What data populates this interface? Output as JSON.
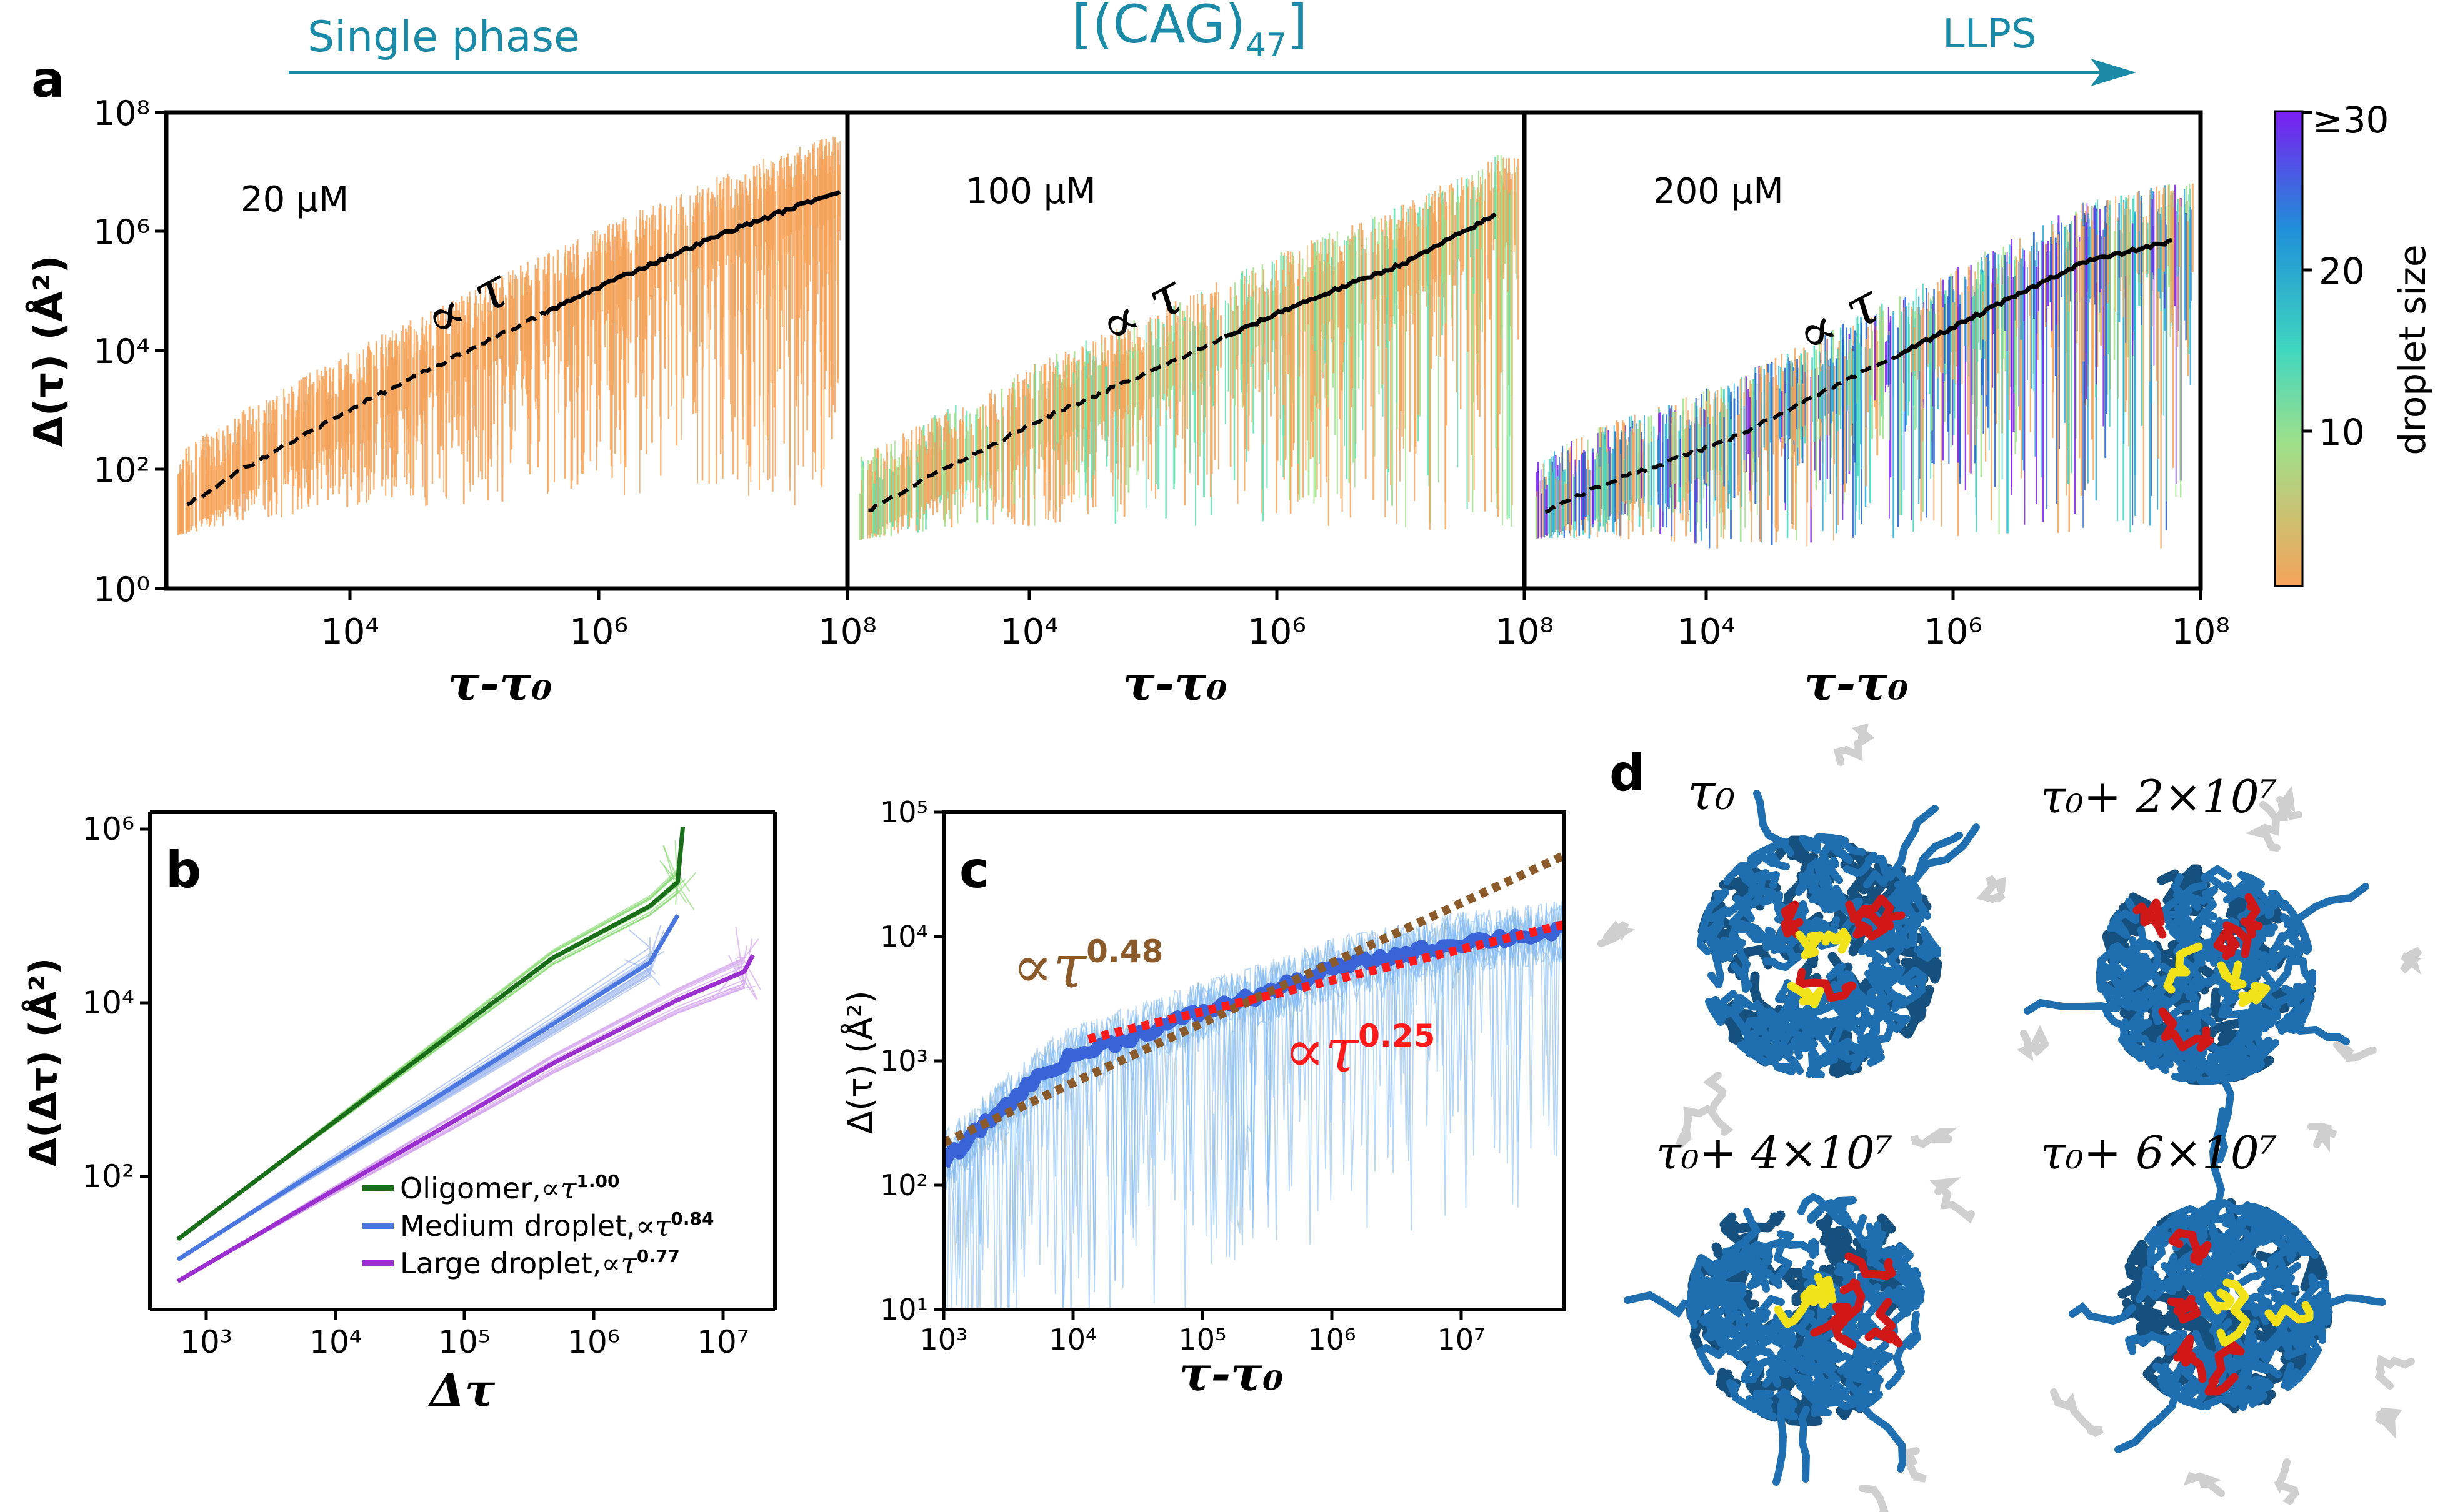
{
  "header": {
    "left": "Single phase",
    "center_main": "[(CAG)",
    "center_sub": "47",
    "center_close": "]",
    "right": "LLPS"
  },
  "panel_letters": {
    "a": "a",
    "b": "b",
    "c": "c",
    "d": "d"
  },
  "colors": {
    "header_teal": "#1a8aa6",
    "single_phase_orange": "#f5a35a",
    "oligomer": "#1a6e1a",
    "medium": "#4a78e0",
    "large": "#9b2fd0",
    "c_main": "#3a63d8",
    "c_fit1": "#8b5a2b",
    "c_fit2": "#ff1a1a",
    "droplet_blue": "#1f6fb0",
    "droplet_red": "#d01818",
    "droplet_yellow": "#f2e21a"
  },
  "panel_a": {
    "ylabel": "Δ(τ) (Å²)",
    "xlabel": "τ-τ₀",
    "colorbar": {
      "label": "droplet size",
      "ticks": [
        "10",
        "20",
        "≥30"
      ]
    },
    "y_ticks": [
      "10⁰",
      "10²",
      "10⁴",
      "10⁶",
      "10⁸"
    ],
    "x_ticks": [
      "10⁴",
      "10⁶",
      "10⁸"
    ]
  },
  "panel_d": {
    "labels": [
      "τ₀",
      "τ₀+ 2×10⁷",
      "τ₀+ 4×10⁷",
      "τ₀+ 6×10⁷"
    ]
  },
  "chart_data": [
    {
      "id": "a1",
      "type": "scatter",
      "annotation": "20 μM",
      "fit_label": "∝ τ",
      "xscale": "log",
      "yscale": "log",
      "xlim": [
        200,
        100000000
      ],
      "ylim": [
        1,
        100000000
      ],
      "mean_curve": {
        "x": [
          300,
          1000,
          10000,
          100000,
          1000000,
          10000000,
          90000000
        ],
        "y": [
          25,
          120,
          1500,
          15000,
          140000,
          1000000,
          5000000
        ]
      }
    },
    {
      "id": "a2",
      "type": "scatter",
      "annotation": "100 μM",
      "fit_label": "∝ τ",
      "xscale": "log",
      "yscale": "log",
      "xlim": [
        200,
        100000000
      ],
      "ylim": [
        1,
        100000000
      ],
      "mean_curve": {
        "x": [
          300,
          1000,
          10000,
          100000,
          1000000,
          10000000,
          60000000
        ],
        "y": [
          20,
          80,
          800,
          6000,
          50000,
          300000,
          2000000
        ]
      }
    },
    {
      "id": "a3",
      "type": "scatter",
      "annotation": "200 μM",
      "fit_label": "∝ τ",
      "xscale": "log",
      "yscale": "log",
      "xlim": [
        200,
        100000000
      ],
      "ylim": [
        1,
        100000000
      ],
      "mean_curve": {
        "x": [
          300,
          1000,
          10000,
          100000,
          1000000,
          10000000,
          60000000
        ],
        "y": [
          20,
          60,
          300,
          3000,
          30000,
          300000,
          700000
        ]
      }
    },
    {
      "id": "b",
      "type": "line",
      "xlabel": "Δτ",
      "ylabel": "Δ(Δτ) (Å²)",
      "xscale": "log",
      "yscale": "log",
      "xlim": [
        300,
        30000000
      ],
      "ylim": [
        5,
        1000000
      ],
      "x_ticks": [
        "10³",
        "10⁴",
        "10⁵",
        "10⁶",
        "10⁷"
      ],
      "y_ticks": [
        "10²",
        "10⁴",
        "10⁶"
      ],
      "series": [
        {
          "name": "Oligomer",
          "exponent_label": "∝τ",
          "exponent": "1.00",
          "x": [
            500,
            5000,
            50000,
            500000,
            3000000,
            5000000,
            5500000
          ],
          "y": [
            28,
            280,
            2800,
            28000,
            100000,
            180000,
            700000
          ]
        },
        {
          "name": "Medium droplet",
          "exponent_label": "∝τ",
          "exponent": "0.84",
          "x": [
            500,
            5000,
            50000,
            500000,
            3000000,
            5000000
          ],
          "y": [
            17,
            120,
            800,
            5500,
            25000,
            80000
          ]
        },
        {
          "name": "Large droplet",
          "exponent_label": "∝τ",
          "exponent": "0.77",
          "x": [
            500,
            5000,
            50000,
            500000,
            5000000,
            17000000,
            20000000
          ],
          "y": [
            10,
            60,
            350,
            2100,
            10000,
            20000,
            30000
          ]
        }
      ]
    },
    {
      "id": "c",
      "type": "line",
      "xlabel": "τ-τ₀",
      "ylabel": "Δ(τ) (Å²)",
      "xscale": "log",
      "yscale": "log",
      "xlim": [
        1000,
        60000000
      ],
      "ylim": [
        10,
        100000
      ],
      "x_ticks": [
        "10³",
        "10⁴",
        "10⁵",
        "10⁶",
        "10⁷"
      ],
      "y_ticks": [
        "10¹",
        "10²",
        "10³",
        "10⁴",
        "10⁵"
      ],
      "series": [
        {
          "x": [
            1000,
            2000,
            5000,
            10000,
            30000,
            100000,
            300000,
            1000000,
            3000000,
            10000000,
            60000000
          ],
          "y": [
            150,
            300,
            700,
            1100,
            1600,
            2500,
            3500,
            5500,
            7000,
            9000,
            11000
          ]
        }
      ],
      "fits": [
        {
          "label": "∝τ",
          "exponent": "0.48",
          "x": [
            1000,
            60000000
          ],
          "y": [
            220,
            45000
          ]
        },
        {
          "label": "∝τ",
          "exponent": "0.25",
          "x": [
            13000,
            60000000
          ],
          "y": [
            1500,
            12500
          ]
        }
      ]
    }
  ]
}
